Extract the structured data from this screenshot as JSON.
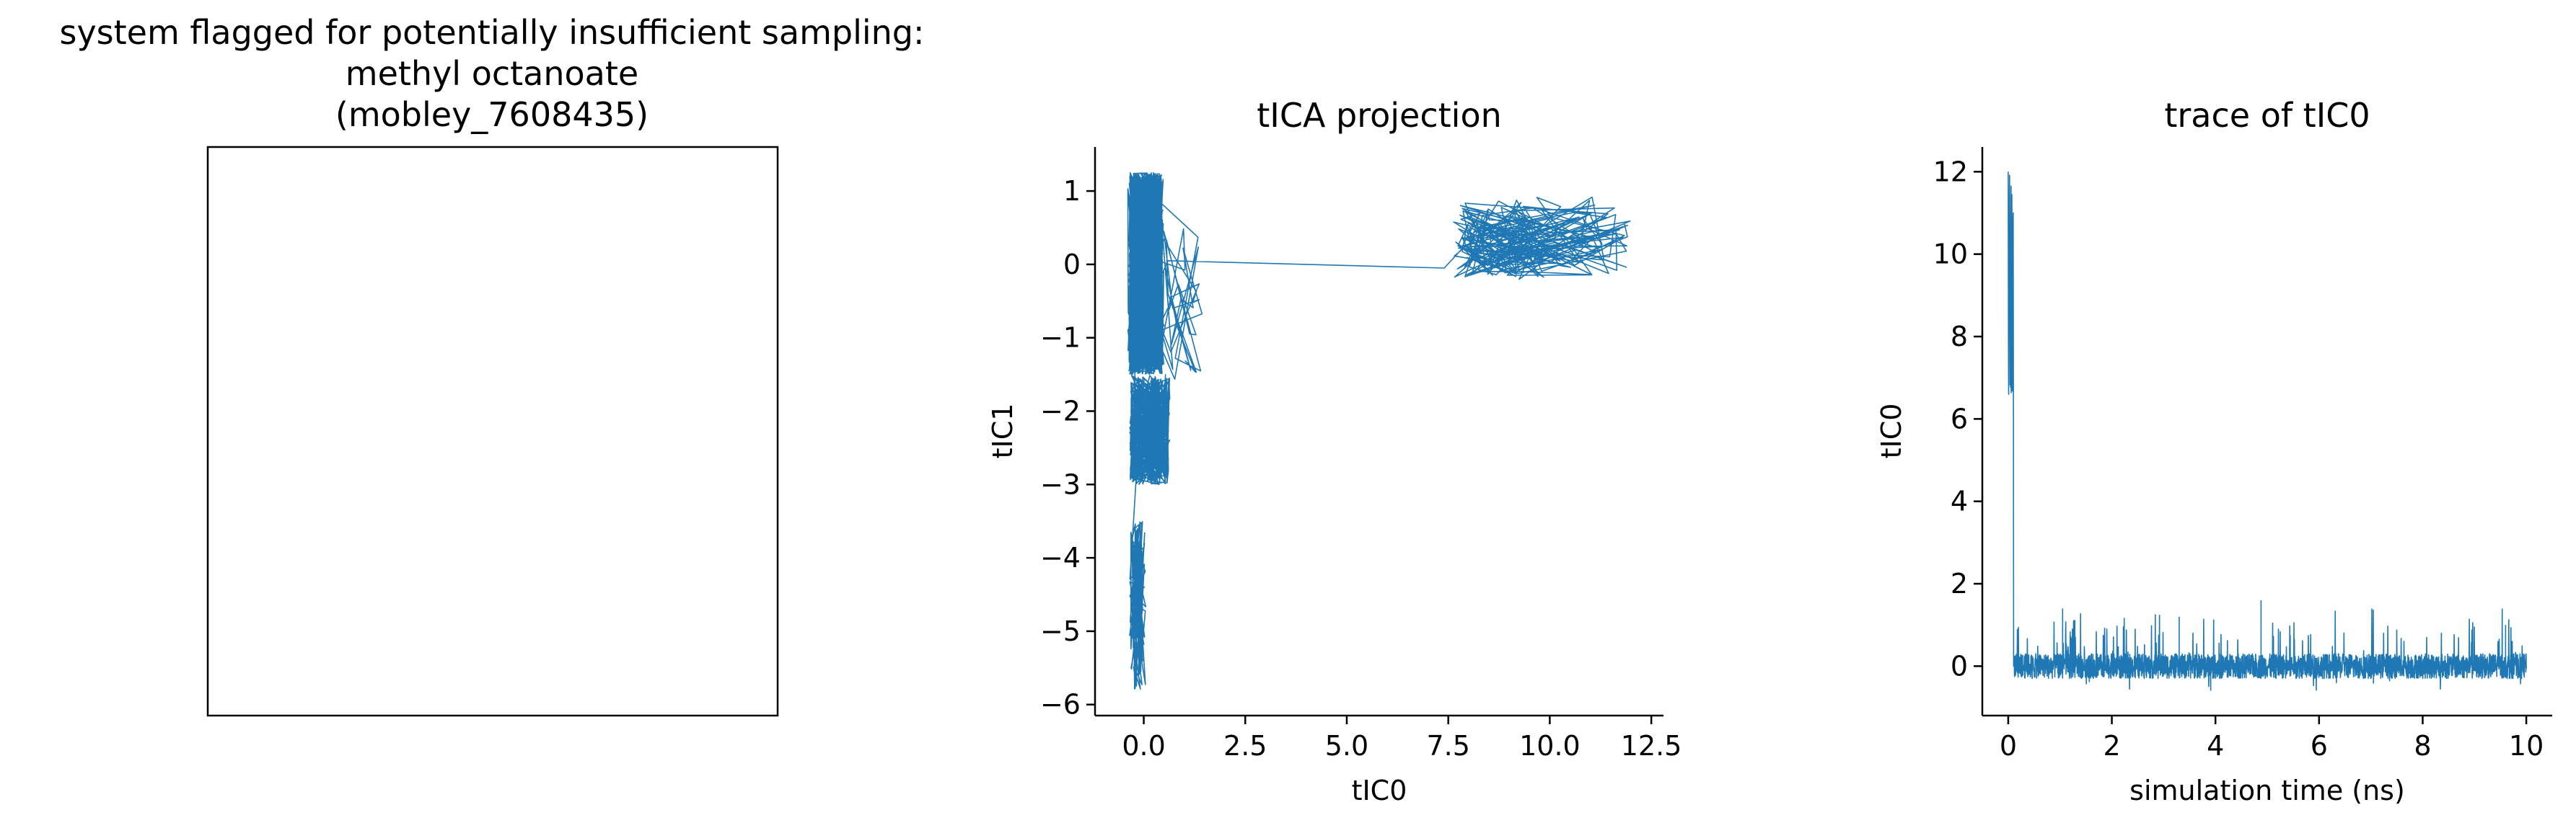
{
  "figure": {
    "panels": [
      {
        "id": "molecule",
        "title_lines": [
          "system flagged for potentially insufficient sampling:",
          "methyl octanoate",
          "(mobley_7608435)"
        ]
      }
    ],
    "line_color": "#1f77b4"
  },
  "chart_data": [
    {
      "type": "line",
      "title": "tICA projection",
      "xlabel": "tIC0",
      "ylabel": "tIC1",
      "xlim": [
        -1.2,
        12.8
      ],
      "ylim": [
        -6.15,
        1.6
      ],
      "xticks": [
        0,
        2.5,
        5,
        7.5,
        10,
        12.5
      ],
      "xtick_labels": [
        "0.0",
        "2.5",
        "5.0",
        "7.5",
        "10.0",
        "12.5"
      ],
      "yticks": [
        -6,
        -5,
        -4,
        -3,
        -2,
        -1,
        0,
        1
      ],
      "ytick_labels": [
        "−6",
        "−5",
        "−4",
        "−3",
        "−2",
        "−1",
        "0",
        "1"
      ],
      "grid": false,
      "series": [
        {
          "description_regions": [
            {
              "x_range": [
                -0.5,
                0.6
              ],
              "y_range": [
                -1.5,
                1.25
              ],
              "density": "dense"
            },
            {
              "x_range": [
                -0.4,
                0.7
              ],
              "y_range": [
                -3.0,
                -1.5
              ],
              "density": "medium"
            },
            {
              "x_range": [
                -0.4,
                0.1
              ],
              "y_range": [
                -5.8,
                -3.5
              ],
              "density": "sparse"
            },
            {
              "x_range": [
                6.8,
                12.0
              ],
              "y_range": [
                -0.3,
                1.1
              ],
              "density": "cluster"
            }
          ],
          "transition": [
            [
              0.6,
              0.05
            ],
            [
              7.4,
              -0.05
            ],
            [
              7.9,
              0.25
            ]
          ]
        }
      ]
    },
    {
      "type": "line",
      "title": "trace of tIC0",
      "xlabel": "simulation time (ns)",
      "ylabel": "tIC0",
      "xlim": [
        -0.5,
        10.5
      ],
      "ylim": [
        -1.2,
        12.6
      ],
      "xticks": [
        0,
        2,
        4,
        6,
        8,
        10
      ],
      "xtick_labels": [
        "0",
        "2",
        "4",
        "6",
        "8",
        "10"
      ],
      "yticks": [
        0,
        2,
        4,
        6,
        8,
        10,
        12
      ],
      "ytick_labels": [
        "0",
        "2",
        "4",
        "6",
        "8",
        "10",
        "12"
      ],
      "grid": false,
      "series": [
        {
          "x_range": [
            0,
            10
          ],
          "initial_segment": {
            "x_range": [
              0,
              0.1
            ],
            "y_range": [
              6.5,
              12.0
            ]
          },
          "baseline": 0,
          "noise_range": [
            -0.6,
            1.6
          ]
        }
      ]
    }
  ]
}
